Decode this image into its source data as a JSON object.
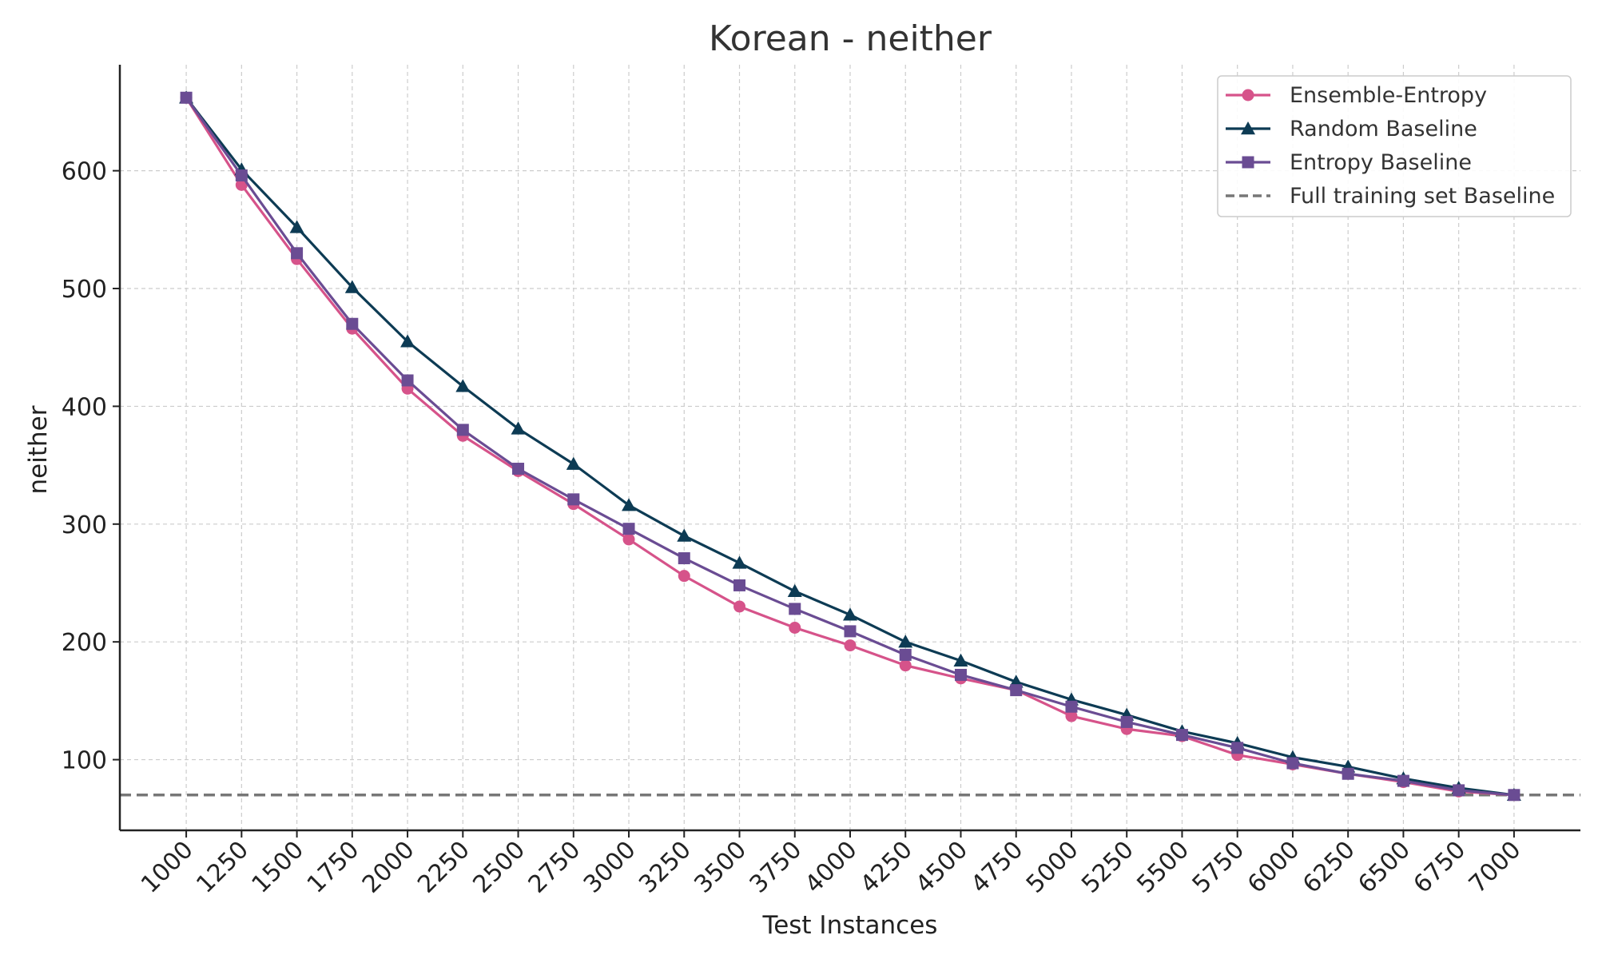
{
  "chart_data": {
    "type": "line",
    "title": "Korean - neither",
    "xlabel": "Test Instances",
    "ylabel": "neither",
    "x": [
      1000,
      1250,
      1500,
      1750,
      2000,
      2250,
      2500,
      2750,
      3000,
      3250,
      3500,
      3750,
      4000,
      4250,
      4500,
      4750,
      5000,
      5250,
      5500,
      5750,
      6000,
      6250,
      6500,
      6750,
      7000
    ],
    "x_tick_labels": [
      "1000",
      "1250",
      "1500",
      "1750",
      "2000",
      "2250",
      "2500",
      "2750",
      "3000",
      "3250",
      "3500",
      "3750",
      "4000",
      "4250",
      "4500",
      "4750",
      "5000",
      "5250",
      "5500",
      "5750",
      "6000",
      "6250",
      "6500",
      "6750",
      "7000"
    ],
    "y_ticks": [
      100,
      200,
      300,
      400,
      500,
      600
    ],
    "y_tick_labels": [
      "100",
      "200",
      "300",
      "400",
      "500",
      "600"
    ],
    "xlim": [
      700,
      7300
    ],
    "ylim": [
      40,
      690
    ],
    "grid": true,
    "legend_position": "top-right",
    "series": [
      {
        "name": "Ensemble-Entropy",
        "color": "#d6538a",
        "marker": "circle",
        "values": [
          662,
          588,
          525,
          466,
          415,
          375,
          345,
          317,
          287,
          256,
          230,
          212,
          197,
          180,
          169,
          159,
          137,
          126,
          120,
          104,
          96,
          88,
          81,
          73,
          70
        ]
      },
      {
        "name": "Random Baseline",
        "color": "#0d3b54",
        "marker": "triangle",
        "values": [
          662,
          601,
          552,
          501,
          455,
          417,
          381,
          351,
          316,
          290,
          267,
          243,
          223,
          200,
          184,
          166,
          151,
          138,
          124,
          114,
          102,
          94,
          84,
          76,
          70
        ]
      },
      {
        "name": "Entropy Baseline",
        "color": "#6a4c93",
        "marker": "square",
        "values": [
          662,
          596,
          530,
          470,
          422,
          380,
          347,
          321,
          296,
          271,
          248,
          228,
          209,
          189,
          172,
          159,
          145,
          132,
          121,
          110,
          97,
          88,
          82,
          74,
          70
        ]
      }
    ],
    "reference_line": {
      "name": "Full training set Baseline",
      "color": "#777777",
      "style": "dashed",
      "value": 70
    }
  }
}
